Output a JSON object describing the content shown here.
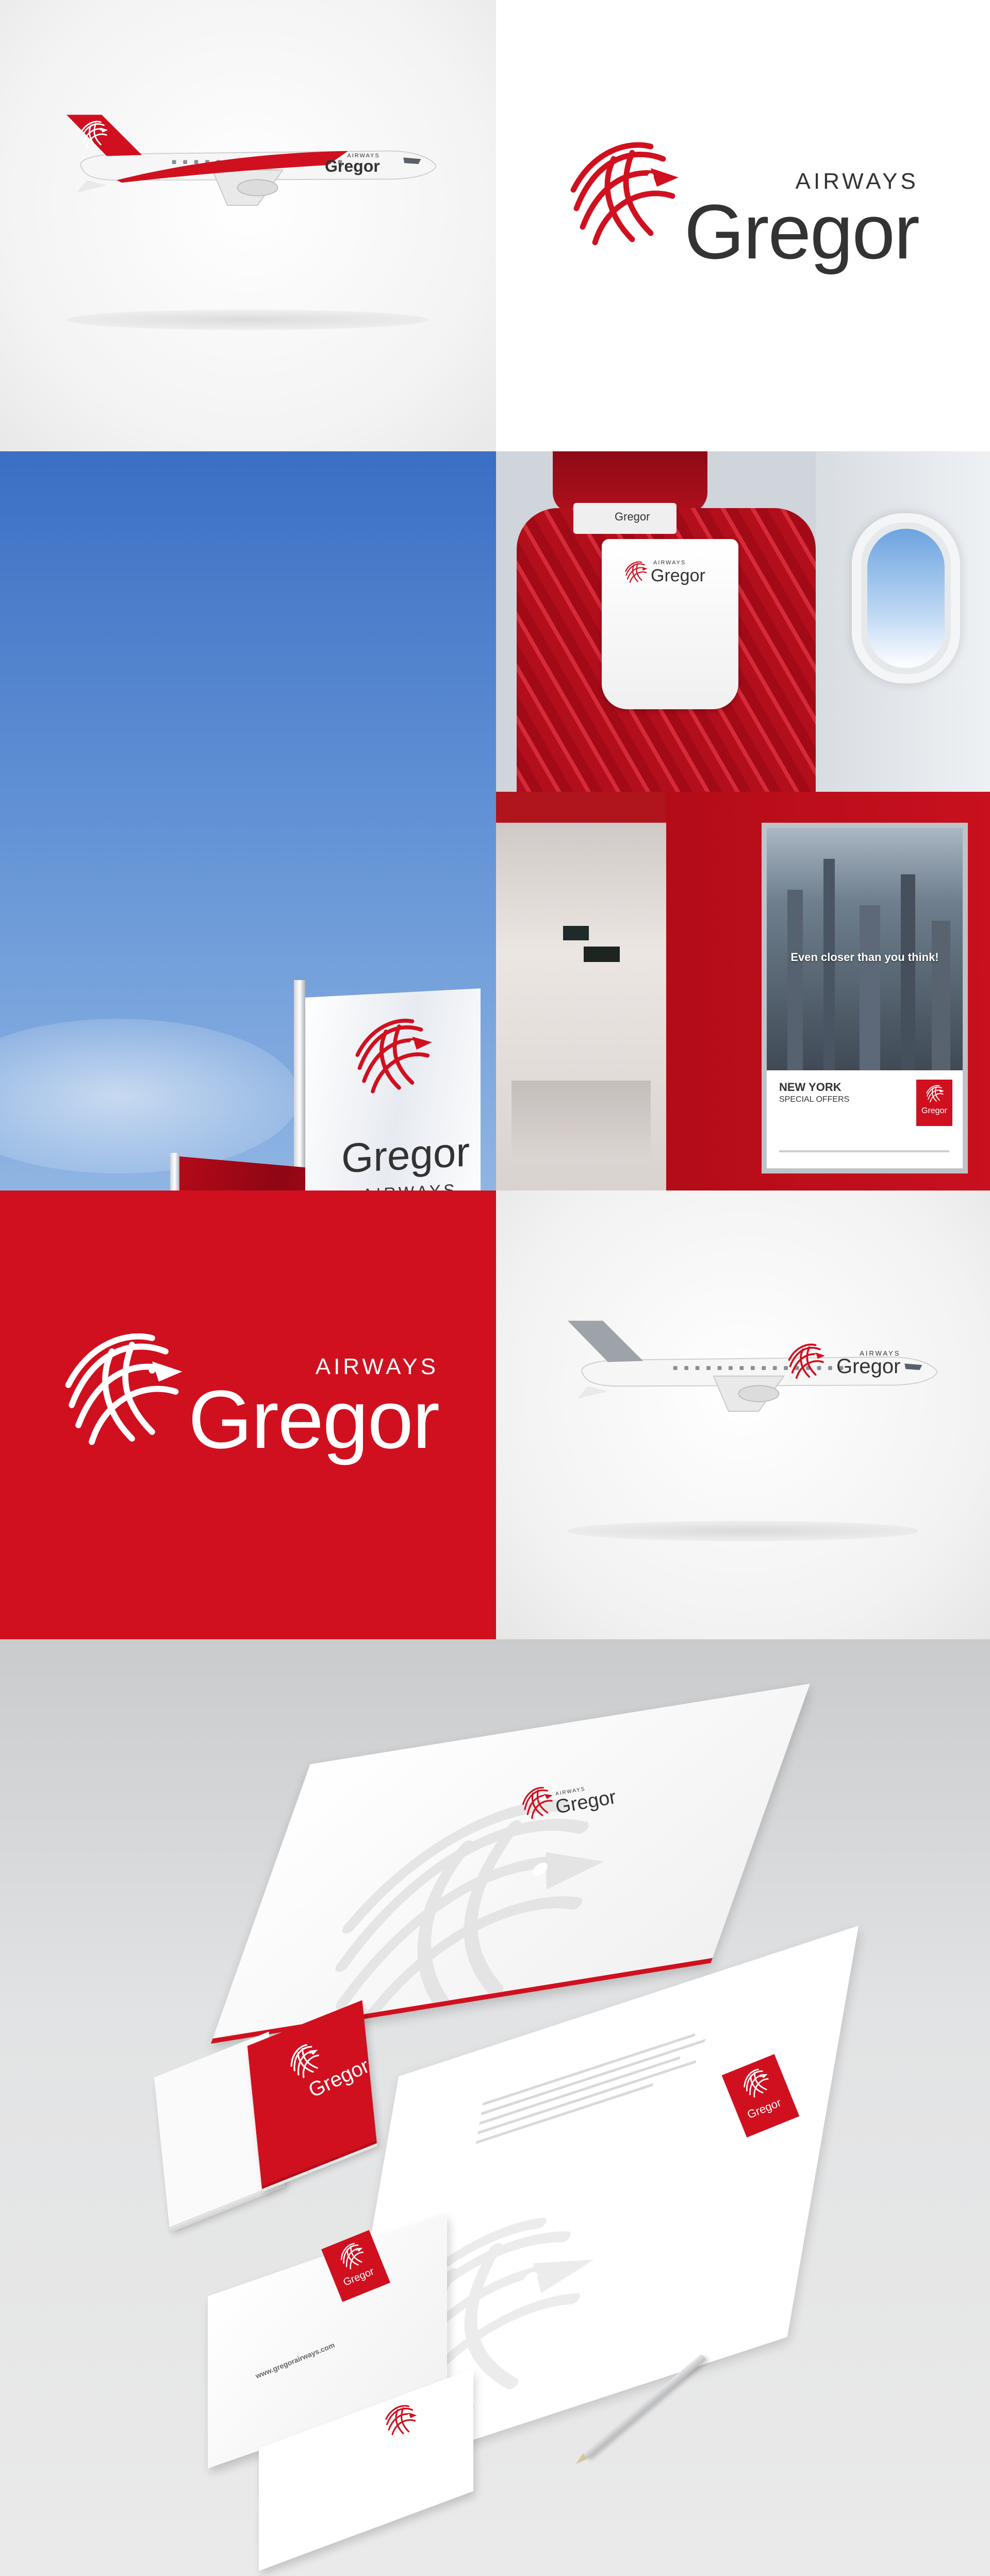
{
  "brand": {
    "name": "Gregor",
    "tag": "AIRWAYS",
    "primary_color": "#d0101f",
    "dark_color": "#333333"
  },
  "poster": {
    "headline": "Even closer than you think!",
    "city": "NEW YORK",
    "offer": "SPECIAL OFFERS"
  },
  "stationery": {
    "website": "www.gregorairways.com"
  },
  "icons": {
    "logo": "bird-emblem-icon"
  }
}
